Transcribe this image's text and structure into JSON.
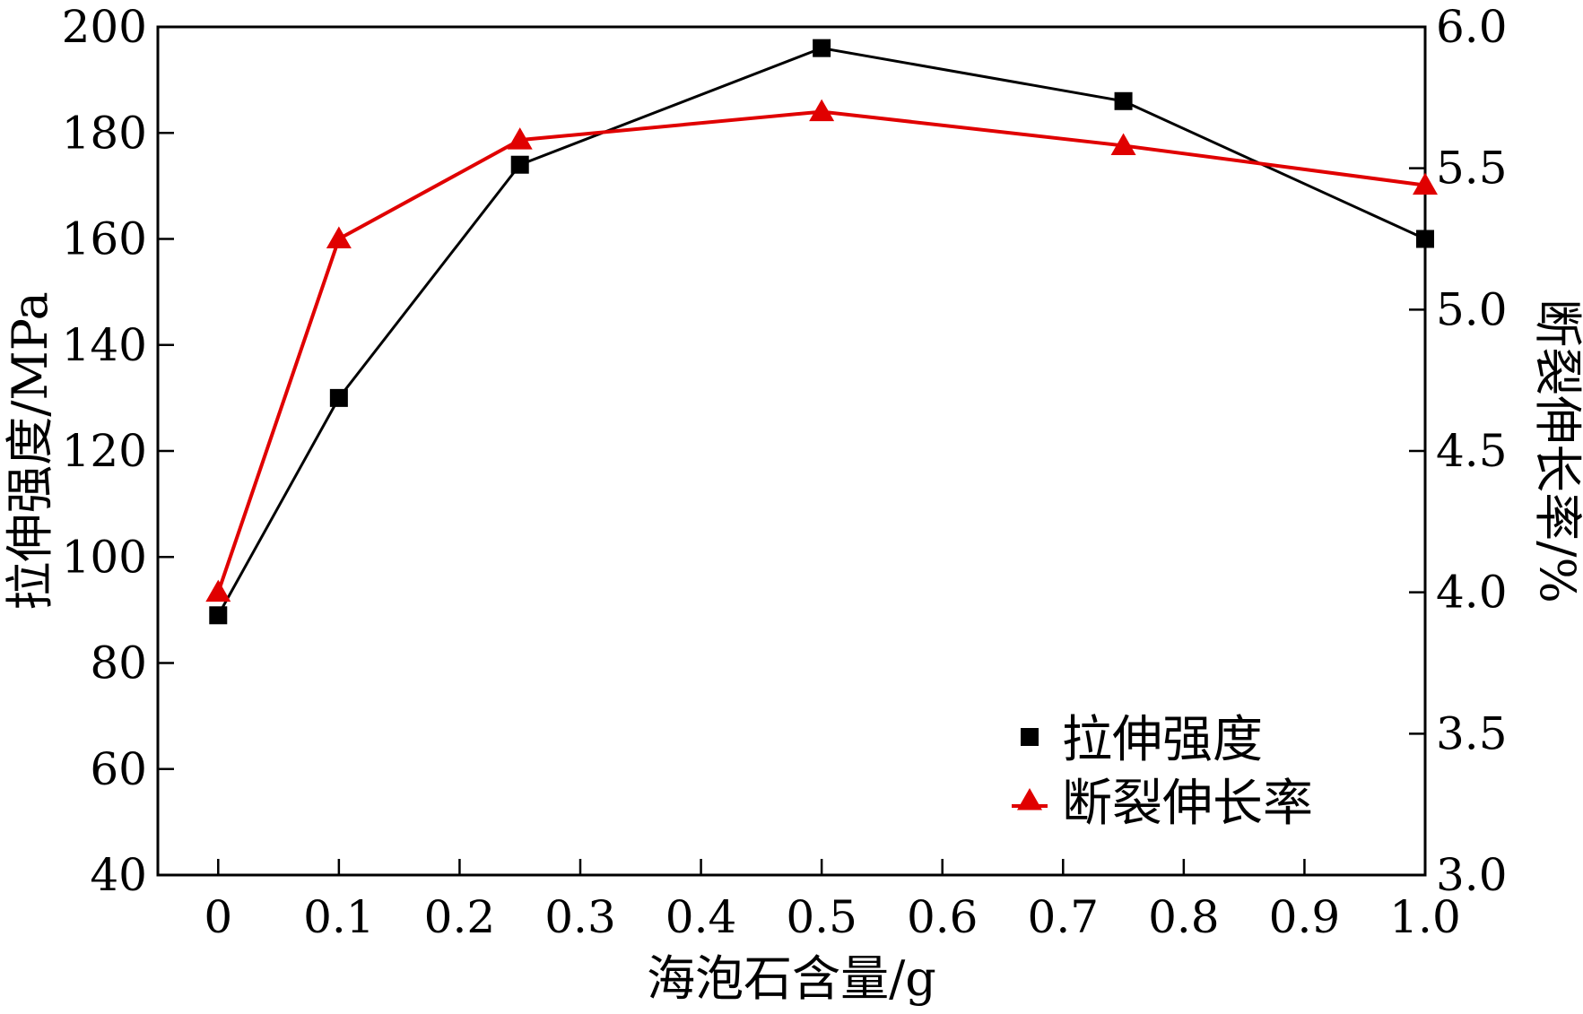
{
  "chart_data": {
    "type": "line",
    "title": "",
    "xlabel": "海泡石含量/g",
    "ylabel_left": "拉伸强度/MPa",
    "ylabel_right": "断裂伸长率/%",
    "xlim": [
      -0.05,
      1.0
    ],
    "ylim_left": [
      40,
      200
    ],
    "ylim_right": [
      3.0,
      6.0
    ],
    "x_ticks": [
      "0",
      "0.1",
      "0.2",
      "0.3",
      "0.4",
      "0.5",
      "0.6",
      "0.7",
      "0.8",
      "0.9",
      "1.0"
    ],
    "y_ticks_left": [
      "40",
      "60",
      "80",
      "100",
      "120",
      "140",
      "160",
      "180",
      "200"
    ],
    "y_ticks_right": [
      "3.0",
      "3.5",
      "4.0",
      "4.5",
      "5.0",
      "5.5",
      "6.0"
    ],
    "grid": false,
    "legend_position": "bottom-right",
    "series": [
      {
        "name": "拉伸强度",
        "axis": "left",
        "marker": "square",
        "color": "#000000",
        "x": [
          0,
          0.1,
          0.25,
          0.5,
          0.75,
          1.0
        ],
        "values": [
          89,
          130,
          174,
          196,
          186,
          160
        ]
      },
      {
        "name": "断裂伸长率",
        "axis": "right",
        "marker": "triangle",
        "color": "#e00000",
        "x": [
          0,
          0.1,
          0.25,
          0.5,
          0.75,
          1.0
        ],
        "values": [
          4.0,
          5.25,
          5.6,
          5.7,
          5.58,
          5.44
        ]
      }
    ]
  }
}
